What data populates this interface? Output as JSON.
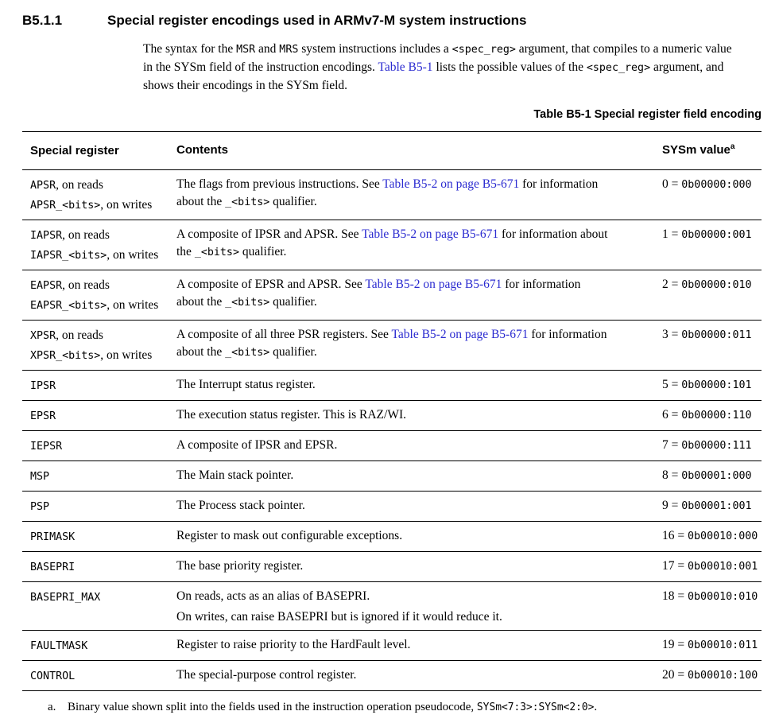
{
  "heading": {
    "number": "B5.1.1",
    "title": "Special register encodings used in ARMv7-M system instructions"
  },
  "intro_lines": [
    [
      {
        "t": "The syntax for the ",
        "k": "plain"
      },
      {
        "t": "MSR",
        "k": "mono"
      },
      {
        "t": " and ",
        "k": "plain"
      },
      {
        "t": "MRS",
        "k": "mono"
      },
      {
        "t": " system instructions includes a ",
        "k": "plain"
      },
      {
        "t": "<spec_reg>",
        "k": "mono"
      },
      {
        "t": " argument, that compiles to a numeric value",
        "k": "plain"
      }
    ],
    [
      {
        "t": "in the SYSm field of the instruction encodings. ",
        "k": "plain"
      },
      {
        "t": "Table B5-1",
        "k": "link"
      },
      {
        "t": " lists the possible values of the ",
        "k": "plain"
      },
      {
        "t": "<spec_reg>",
        "k": "mono"
      },
      {
        "t": " argument, and",
        "k": "plain"
      }
    ],
    [
      {
        "t": "shows their encodings in the SYSm field.",
        "k": "plain"
      }
    ]
  ],
  "table": {
    "caption": "Table B5-1 Special register field encoding",
    "headers": {
      "register": "Special register",
      "contents": "Contents",
      "value": "SYSm value",
      "value_footnote_marker": "a"
    },
    "rows": [
      {
        "register_lines": [
          [
            {
              "t": "APSR",
              "k": "mono"
            },
            {
              "t": ", on reads",
              "k": "plain"
            }
          ],
          [
            {
              "t": "APSR_<bits>",
              "k": "mono"
            },
            {
              "t": ", on writes",
              "k": "plain"
            }
          ]
        ],
        "content_lines": [
          [
            {
              "t": "The flags from previous instructions. See ",
              "k": "plain"
            },
            {
              "t": "Table B5-2 on page B5-671",
              "k": "link"
            },
            {
              "t": " for information",
              "k": "plain"
            }
          ],
          [
            {
              "t": "about the ",
              "k": "plain"
            },
            {
              "t": "_<bits>",
              "k": "mono"
            },
            {
              "t": " qualifier.",
              "k": "plain"
            }
          ]
        ],
        "content_gap": false,
        "value": [
          {
            "t": "0 = ",
            "k": "plain"
          },
          {
            "t": "0b00000:000",
            "k": "mono"
          }
        ]
      },
      {
        "register_lines": [
          [
            {
              "t": "IAPSR",
              "k": "mono"
            },
            {
              "t": ", on reads",
              "k": "plain"
            }
          ],
          [
            {
              "t": "IAPSR_<bits>",
              "k": "mono"
            },
            {
              "t": ", on writes",
              "k": "plain"
            }
          ]
        ],
        "content_lines": [
          [
            {
              "t": "A composite of IPSR and APSR. See ",
              "k": "plain"
            },
            {
              "t": "Table B5-2 on page B5-671",
              "k": "link"
            },
            {
              "t": " for information about",
              "k": "plain"
            }
          ],
          [
            {
              "t": "the ",
              "k": "plain"
            },
            {
              "t": "_<bits>",
              "k": "mono"
            },
            {
              "t": " qualifier.",
              "k": "plain"
            }
          ]
        ],
        "content_gap": false,
        "value": [
          {
            "t": "1 = ",
            "k": "plain"
          },
          {
            "t": "0b00000:001",
            "k": "mono"
          }
        ]
      },
      {
        "register_lines": [
          [
            {
              "t": "EAPSR",
              "k": "mono"
            },
            {
              "t": ", on reads",
              "k": "plain"
            }
          ],
          [
            {
              "t": "EAPSR_<bits>",
              "k": "mono"
            },
            {
              "t": ", on writes",
              "k": "plain"
            }
          ]
        ],
        "content_lines": [
          [
            {
              "t": "A composite of EPSR and APSR. See ",
              "k": "plain"
            },
            {
              "t": "Table B5-2 on page B5-671",
              "k": "link"
            },
            {
              "t": " for information",
              "k": "plain"
            }
          ],
          [
            {
              "t": "about the ",
              "k": "plain"
            },
            {
              "t": "_<bits>",
              "k": "mono"
            },
            {
              "t": " qualifier.",
              "k": "plain"
            }
          ]
        ],
        "content_gap": false,
        "value": [
          {
            "t": "2 = ",
            "k": "plain"
          },
          {
            "t": "0b00000:010",
            "k": "mono"
          }
        ]
      },
      {
        "register_lines": [
          [
            {
              "t": "XPSR",
              "k": "mono"
            },
            {
              "t": ", on reads",
              "k": "plain"
            }
          ],
          [
            {
              "t": "XPSR_<bits>",
              "k": "mono"
            },
            {
              "t": ", on writes",
              "k": "plain"
            }
          ]
        ],
        "content_lines": [
          [
            {
              "t": "A composite of all three PSR registers. See ",
              "k": "plain"
            },
            {
              "t": "Table B5-2 on page B5-671",
              "k": "link"
            },
            {
              "t": " for information",
              "k": "plain"
            }
          ],
          [
            {
              "t": "about the ",
              "k": "plain"
            },
            {
              "t": "_<bits>",
              "k": "mono"
            },
            {
              "t": " qualifier.",
              "k": "plain"
            }
          ]
        ],
        "content_gap": false,
        "value": [
          {
            "t": "3 = ",
            "k": "plain"
          },
          {
            "t": "0b00000:011",
            "k": "mono"
          }
        ]
      },
      {
        "register_lines": [
          [
            {
              "t": "IPSR",
              "k": "mono"
            }
          ]
        ],
        "content_lines": [
          [
            {
              "t": "The Interrupt status register.",
              "k": "plain"
            }
          ]
        ],
        "content_gap": false,
        "value": [
          {
            "t": "5 = ",
            "k": "plain"
          },
          {
            "t": "0b00000:101",
            "k": "mono"
          }
        ]
      },
      {
        "register_lines": [
          [
            {
              "t": "EPSR",
              "k": "mono"
            }
          ]
        ],
        "content_lines": [
          [
            {
              "t": "The execution status register. This is RAZ/WI.",
              "k": "plain"
            }
          ]
        ],
        "content_gap": false,
        "value": [
          {
            "t": "6 = ",
            "k": "plain"
          },
          {
            "t": "0b00000:110",
            "k": "mono"
          }
        ]
      },
      {
        "register_lines": [
          [
            {
              "t": "IEPSR",
              "k": "mono"
            }
          ]
        ],
        "content_lines": [
          [
            {
              "t": "A composite of IPSR and EPSR.",
              "k": "plain"
            }
          ]
        ],
        "content_gap": false,
        "value": [
          {
            "t": "7 = ",
            "k": "plain"
          },
          {
            "t": "0b00000:111",
            "k": "mono"
          }
        ]
      },
      {
        "register_lines": [
          [
            {
              "t": "MSP",
              "k": "mono"
            }
          ]
        ],
        "content_lines": [
          [
            {
              "t": "The Main stack pointer.",
              "k": "plain"
            }
          ]
        ],
        "content_gap": false,
        "value": [
          {
            "t": "8 = ",
            "k": "plain"
          },
          {
            "t": "0b00001:000",
            "k": "mono"
          }
        ]
      },
      {
        "register_lines": [
          [
            {
              "t": "PSP",
              "k": "mono"
            }
          ]
        ],
        "content_lines": [
          [
            {
              "t": "The Process stack pointer.",
              "k": "plain"
            }
          ]
        ],
        "content_gap": false,
        "value": [
          {
            "t": "9 = ",
            "k": "plain"
          },
          {
            "t": "0b00001:001",
            "k": "mono"
          }
        ]
      },
      {
        "register_lines": [
          [
            {
              "t": "PRIMASK",
              "k": "mono"
            }
          ]
        ],
        "content_lines": [
          [
            {
              "t": "Register to mask out configurable exceptions.",
              "k": "plain"
            }
          ]
        ],
        "content_gap": false,
        "value": [
          {
            "t": "16 = ",
            "k": "plain"
          },
          {
            "t": "0b00010:000",
            "k": "mono"
          }
        ]
      },
      {
        "register_lines": [
          [
            {
              "t": "BASEPRI",
              "k": "mono"
            }
          ]
        ],
        "content_lines": [
          [
            {
              "t": "The base priority register.",
              "k": "plain"
            }
          ]
        ],
        "content_gap": false,
        "value": [
          {
            "t": "17 = ",
            "k": "plain"
          },
          {
            "t": "0b00010:001",
            "k": "mono"
          }
        ]
      },
      {
        "register_lines": [
          [
            {
              "t": "BASEPRI_MAX",
              "k": "mono"
            }
          ]
        ],
        "content_lines": [
          [
            {
              "t": "On reads, acts as an alias of BASEPRI.",
              "k": "plain"
            }
          ],
          [
            {
              "t": "On writes, can raise BASEPRI but is ignored if it would reduce it.",
              "k": "plain"
            }
          ]
        ],
        "content_gap": true,
        "value": [
          {
            "t": "18 = ",
            "k": "plain"
          },
          {
            "t": "0b00010:010",
            "k": "mono"
          }
        ]
      },
      {
        "register_lines": [
          [
            {
              "t": "FAULTMASK",
              "k": "mono"
            }
          ]
        ],
        "content_lines": [
          [
            {
              "t": "Register to raise priority to the HardFault level.",
              "k": "plain"
            }
          ]
        ],
        "content_gap": false,
        "value": [
          {
            "t": "19 = ",
            "k": "plain"
          },
          {
            "t": "0b00010:011",
            "k": "mono"
          }
        ]
      },
      {
        "register_lines": [
          [
            {
              "t": "CONTROL",
              "k": "mono"
            }
          ]
        ],
        "content_lines": [
          [
            {
              "t": "The special-purpose control register.",
              "k": "plain"
            }
          ]
        ],
        "content_gap": false,
        "value": [
          {
            "t": "20 = ",
            "k": "plain"
          },
          {
            "t": "0b00010:100",
            "k": "mono"
          }
        ]
      }
    ]
  },
  "footnote": {
    "marker": "a.",
    "segments": [
      {
        "t": "Binary value shown split into the fields used in the instruction operation pseudocode, ",
        "k": "plain"
      },
      {
        "t": "SYSm<7:3>:SYSm<2:0>",
        "k": "mono"
      },
      {
        "t": ".",
        "k": "plain"
      }
    ]
  },
  "colors": {
    "background": "#ffffff",
    "text": "#000000",
    "link": "#2b2bd0",
    "rule": "#000000"
  }
}
